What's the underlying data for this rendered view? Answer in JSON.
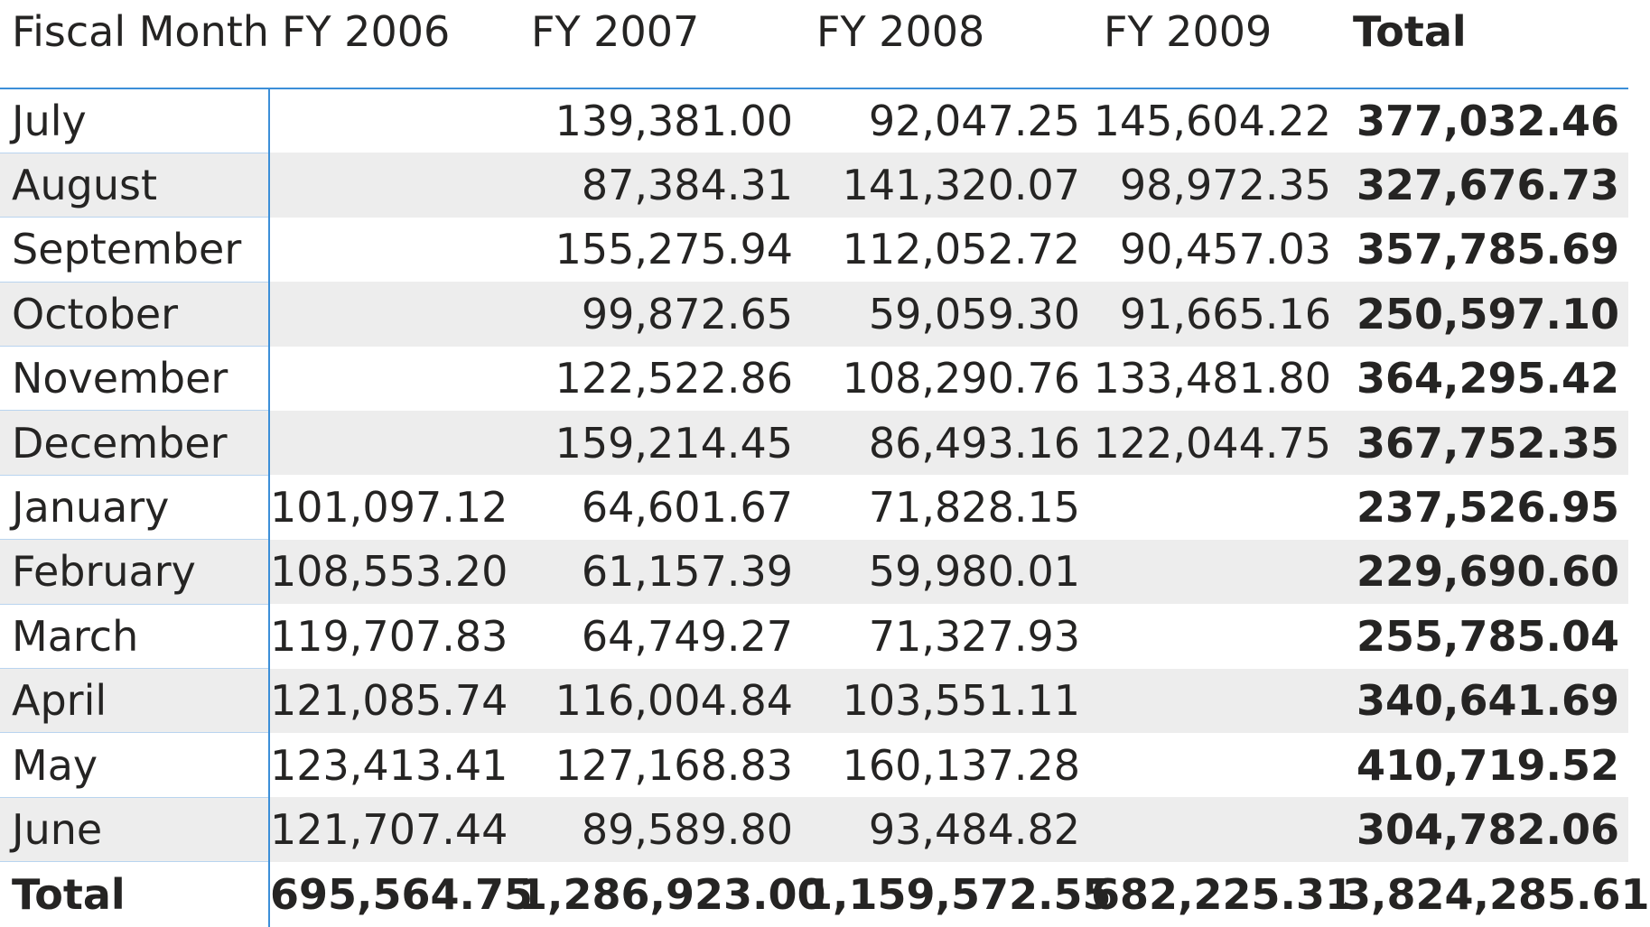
{
  "headers": {
    "row_header": "Fiscal Month",
    "years": [
      "FY 2006",
      "FY 2007",
      "FY 2008",
      "FY 2009"
    ],
    "total": "Total"
  },
  "rows": [
    {
      "month": "July",
      "fy2006": "",
      "fy2007": "139,381.00",
      "fy2008": "92,047.25",
      "fy2009": "145,604.22",
      "total": "377,032.46"
    },
    {
      "month": "August",
      "fy2006": "",
      "fy2007": "87,384.31",
      "fy2008": "141,320.07",
      "fy2009": "98,972.35",
      "total": "327,676.73"
    },
    {
      "month": "September",
      "fy2006": "",
      "fy2007": "155,275.94",
      "fy2008": "112,052.72",
      "fy2009": "90,457.03",
      "total": "357,785.69"
    },
    {
      "month": "October",
      "fy2006": "",
      "fy2007": "99,872.65",
      "fy2008": "59,059.30",
      "fy2009": "91,665.16",
      "total": "250,597.10"
    },
    {
      "month": "November",
      "fy2006": "",
      "fy2007": "122,522.86",
      "fy2008": "108,290.76",
      "fy2009": "133,481.80",
      "total": "364,295.42"
    },
    {
      "month": "December",
      "fy2006": "",
      "fy2007": "159,214.45",
      "fy2008": "86,493.16",
      "fy2009": "122,044.75",
      "total": "367,752.35"
    },
    {
      "month": "January",
      "fy2006": "101,097.12",
      "fy2007": "64,601.67",
      "fy2008": "71,828.15",
      "fy2009": "",
      "total": "237,526.95"
    },
    {
      "month": "February",
      "fy2006": "108,553.20",
      "fy2007": "61,157.39",
      "fy2008": "59,980.01",
      "fy2009": "",
      "total": "229,690.60"
    },
    {
      "month": "March",
      "fy2006": "119,707.83",
      "fy2007": "64,749.27",
      "fy2008": "71,327.93",
      "fy2009": "",
      "total": "255,785.04"
    },
    {
      "month": "April",
      "fy2006": "121,085.74",
      "fy2007": "116,004.84",
      "fy2008": "103,551.11",
      "fy2009": "",
      "total": "340,641.69"
    },
    {
      "month": "May",
      "fy2006": "123,413.41",
      "fy2007": "127,168.83",
      "fy2008": "160,137.28",
      "fy2009": "",
      "total": "410,719.52"
    },
    {
      "month": "June",
      "fy2006": "121,707.44",
      "fy2007": "89,589.80",
      "fy2008": "93,484.82",
      "fy2009": "",
      "total": "304,782.06"
    }
  ],
  "totals": {
    "label": "Total",
    "fy2006": "695,564.75",
    "fy2007": "1,286,923.00",
    "fy2008": "1,159,572.55",
    "fy2009": "682,225.31",
    "total": "3,824,285.61"
  },
  "colors": {
    "header_border": "#3c8fd8",
    "row_separator": "#b9d4ef",
    "banded_row": "#ededed",
    "text": "#252423"
  }
}
